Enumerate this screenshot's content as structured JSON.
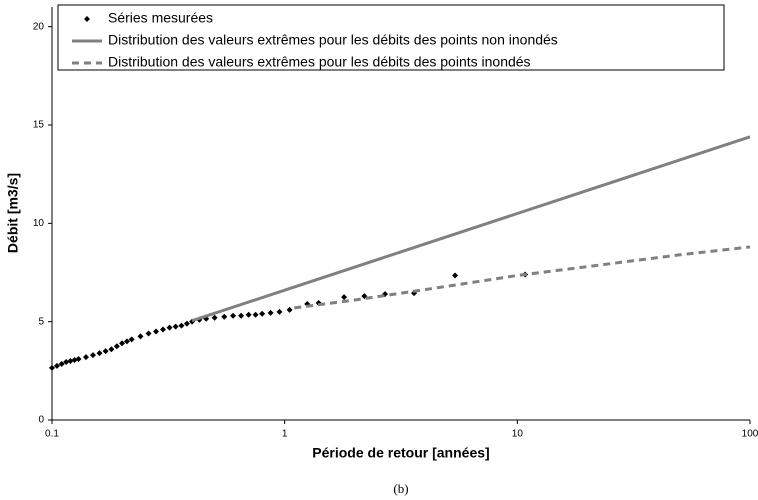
{
  "chart_data": {
    "type": "scatter",
    "x_label": "Période de retour [années]",
    "y_label": "Débit [m3/s]",
    "caption": "(b)",
    "xscale": "log",
    "xlim": [
      0.1,
      100
    ],
    "xticks": [
      0.1,
      1,
      10,
      100
    ],
    "ylim": [
      0,
      21
    ],
    "yticks": [
      0,
      5,
      10,
      15,
      20
    ],
    "legend": "top",
    "series": [
      {
        "name": "Séries mesurées",
        "color": "#000000",
        "mode": "markers",
        "x": [
          0.1,
          0.105,
          0.11,
          0.115,
          0.12,
          0.125,
          0.13,
          0.14,
          0.15,
          0.16,
          0.17,
          0.18,
          0.19,
          0.2,
          0.21,
          0.22,
          0.24,
          0.26,
          0.28,
          0.3,
          0.32,
          0.34,
          0.36,
          0.38,
          0.4,
          0.43,
          0.46,
          0.5,
          0.55,
          0.6,
          0.65,
          0.7,
          0.75,
          0.8,
          0.87,
          0.95,
          1.05,
          1.25,
          1.4,
          1.8,
          2.2,
          2.7,
          3.6,
          5.4,
          10.8
        ],
        "values": [
          2.65,
          2.75,
          2.85,
          2.95,
          3.0,
          3.05,
          3.1,
          3.2,
          3.3,
          3.4,
          3.5,
          3.6,
          3.75,
          3.9,
          4.0,
          4.1,
          4.25,
          4.4,
          4.5,
          4.6,
          4.7,
          4.75,
          4.8,
          4.9,
          5.0,
          5.1,
          5.15,
          5.2,
          5.25,
          5.3,
          5.3,
          5.35,
          5.35,
          5.4,
          5.45,
          5.5,
          5.6,
          5.9,
          5.95,
          6.25,
          6.3,
          6.4,
          6.45,
          7.35,
          7.4
        ]
      },
      {
        "name": "Distribution des valeurs extrêmes pour les débits des points non inondés",
        "color": "#808080",
        "mode": "line",
        "dash": false,
        "x": [
          0.4,
          1,
          10,
          100
        ],
        "values": [
          5.05,
          6.6,
          10.5,
          14.4
        ]
      },
      {
        "name": "Distribution des valeurs extrêmes pour les débits des points inondés",
        "color": "#808080",
        "mode": "line",
        "dash": true,
        "x": [
          1.1,
          2,
          5,
          10,
          20,
          50,
          100
        ],
        "values": [
          5.7,
          6.1,
          6.8,
          7.35,
          7.8,
          8.4,
          8.8
        ]
      }
    ]
  }
}
